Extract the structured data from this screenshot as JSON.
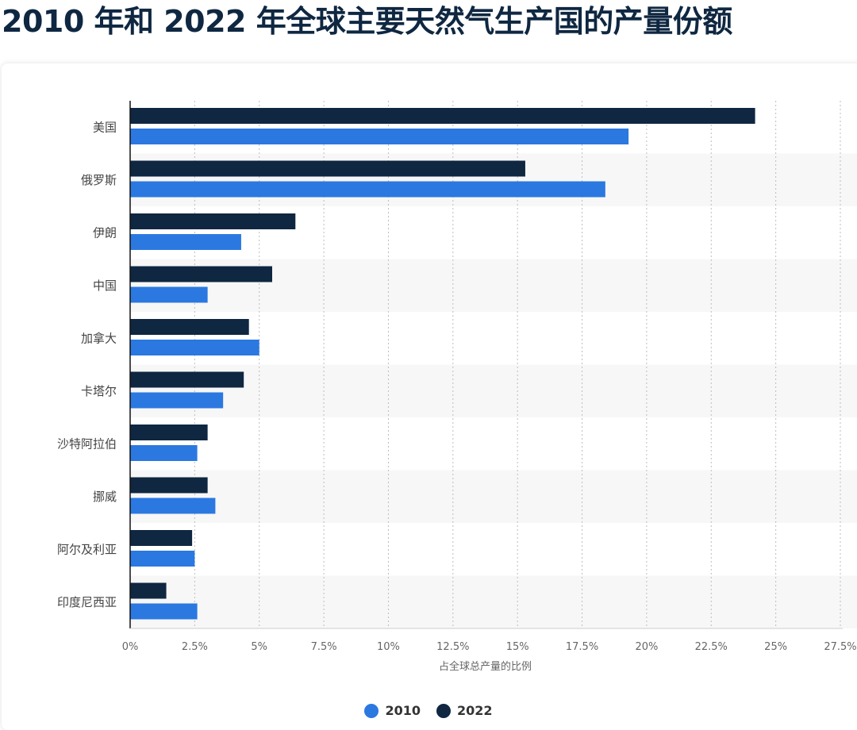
{
  "title": "2010 年和 2022 年全球主要天然气生产国的产量份额",
  "chart_data": {
    "type": "bar",
    "orientation": "horizontal",
    "title": "2010 年和 2022 年全球主要天然气生产国的产量份额",
    "xlabel": "占全球总产量的比例",
    "ylabel": "",
    "xlim": [
      0,
      27.5
    ],
    "xticks": [
      "0%",
      "2.5%",
      "5%",
      "7.5%",
      "10%",
      "12.5%",
      "15%",
      "17.5%",
      "20%",
      "22.5%",
      "25%",
      "27.5%"
    ],
    "grid": true,
    "legend_position": "bottom",
    "categories": [
      "美国",
      "俄罗斯",
      "伊朗",
      "中国",
      "加拿大",
      "卡塔尔",
      "沙特阿拉伯",
      "挪威",
      "阿尔及利亚",
      "印度尼西亚"
    ],
    "series": [
      {
        "name": "2022",
        "color": "#0f2741",
        "values": [
          24.2,
          15.3,
          6.4,
          5.5,
          4.6,
          4.4,
          3.0,
          3.0,
          2.4,
          1.4
        ]
      },
      {
        "name": "2010",
        "color": "#2b78e0",
        "values": [
          19.3,
          18.4,
          4.3,
          3.0,
          5.0,
          3.6,
          2.6,
          3.3,
          2.5,
          2.6
        ]
      }
    ]
  },
  "legend": [
    {
      "name": "2010",
      "color": "#2b78e0"
    },
    {
      "name": "2022",
      "color": "#0f2741"
    }
  ]
}
